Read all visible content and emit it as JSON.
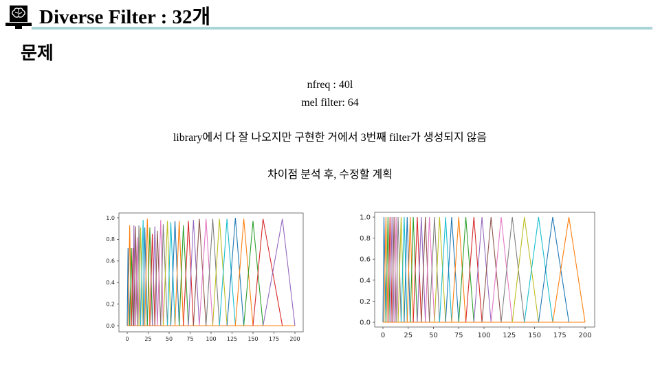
{
  "slide": {
    "title": "Diverse Filter : 32개",
    "heading": "문제",
    "lines": [
      "nfreq : 40l",
      "mel filter: 64",
      "library에서 다 잘 나오지만 구현한 거에서 3번째 filter가 생성되지 않음",
      "차이점 분석 후, 수정할 계획"
    ],
    "logo_icon": "brain-monitor-icon",
    "accent_color": "#a9d4d8"
  },
  "chart_data": [
    {
      "type": "line",
      "title": "",
      "xlabel": "",
      "ylabel": "",
      "xlim": [
        0,
        200
      ],
      "ylim": [
        0,
        1.0
      ],
      "x_ticks": [
        "0",
        "25",
        "50",
        "75",
        "100",
        "125",
        "150",
        "175",
        "200"
      ],
      "y_ticks": [
        "0.0",
        "0.2",
        "0.4",
        "0.6",
        "0.8",
        "1.0"
      ],
      "grid": false,
      "legend": "none",
      "peaks": [
        {
          "x": 1,
          "y": 0.72
        },
        {
          "x": 3,
          "y": 0.93
        },
        {
          "x": 5,
          "y": 0.72
        },
        {
          "x": 7,
          "y": 0.72
        },
        {
          "x": 8,
          "y": 0.93
        },
        {
          "x": 10,
          "y": 0.92
        },
        {
          "x": 12,
          "y": 0.82
        },
        {
          "x": 14,
          "y": 0.93
        },
        {
          "x": 16,
          "y": 0.91
        },
        {
          "x": 19,
          "y": 0.98
        },
        {
          "x": 21,
          "y": 0.91
        },
        {
          "x": 24,
          "y": 0.99
        },
        {
          "x": 27,
          "y": 0.91
        },
        {
          "x": 30,
          "y": 0.85
        },
        {
          "x": 33,
          "y": 0.92
        },
        {
          "x": 36,
          "y": 0.88
        },
        {
          "x": 40,
          "y": 0.98
        },
        {
          "x": 43,
          "y": 0.94
        },
        {
          "x": 48,
          "y": 0.97
        },
        {
          "x": 52,
          "y": 0.96
        },
        {
          "x": 57,
          "y": 0.97
        },
        {
          "x": 62,
          "y": 0.97
        },
        {
          "x": 67,
          "y": 0.93
        },
        {
          "x": 73,
          "y": 0.97
        },
        {
          "x": 79,
          "y": 0.98
        },
        {
          "x": 86,
          "y": 0.99
        },
        {
          "x": 94,
          "y": 0.99
        },
        {
          "x": 102,
          "y": 0.99
        },
        {
          "x": 110,
          "y": 0.99
        },
        {
          "x": 119,
          "y": 0.99
        },
        {
          "x": 129,
          "y": 1.0
        },
        {
          "x": 139,
          "y": 0.99
        },
        {
          "x": 150,
          "y": 0.97
        },
        {
          "x": 162,
          "y": 0.99
        },
        {
          "x": 185,
          "y": 0.99
        }
      ],
      "colors": [
        "#1f77b4",
        "#ff7f0e",
        "#2ca02c",
        "#d62728",
        "#9467bd",
        "#8c564b",
        "#e377c2",
        "#7f7f7f",
        "#bcbd22",
        "#17becf"
      ]
    },
    {
      "type": "line",
      "title": "",
      "xlabel": "",
      "ylabel": "",
      "xlim": [
        0,
        200
      ],
      "ylim": [
        0,
        1.0
      ],
      "x_ticks": [
        "0",
        "25",
        "50",
        "75",
        "100",
        "125",
        "150",
        "175",
        "200"
      ],
      "y_ticks": [
        "0.0",
        "0.2",
        "0.4",
        "0.6",
        "0.8",
        "1.0"
      ],
      "grid": false,
      "legend": "none",
      "peaks": [
        {
          "x": 1,
          "y": 1.0
        },
        {
          "x": 3,
          "y": 1.0
        },
        {
          "x": 5,
          "y": 1.0
        },
        {
          "x": 7,
          "y": 1.0
        },
        {
          "x": 9,
          "y": 1.0
        },
        {
          "x": 11,
          "y": 1.0
        },
        {
          "x": 13,
          "y": 1.0
        },
        {
          "x": 15,
          "y": 1.0
        },
        {
          "x": 18,
          "y": 1.0
        },
        {
          "x": 21,
          "y": 1.0
        },
        {
          "x": 24,
          "y": 1.0
        },
        {
          "x": 27,
          "y": 1.0
        },
        {
          "x": 30,
          "y": 1.0
        },
        {
          "x": 34,
          "y": 1.0
        },
        {
          "x": 38,
          "y": 1.0
        },
        {
          "x": 42,
          "y": 1.0
        },
        {
          "x": 46,
          "y": 1.0
        },
        {
          "x": 51,
          "y": 1.0
        },
        {
          "x": 56,
          "y": 1.0
        },
        {
          "x": 62,
          "y": 1.0
        },
        {
          "x": 68,
          "y": 1.0
        },
        {
          "x": 75,
          "y": 1.0
        },
        {
          "x": 82,
          "y": 1.0
        },
        {
          "x": 90,
          "y": 1.0
        },
        {
          "x": 98,
          "y": 1.0
        },
        {
          "x": 107,
          "y": 1.0
        },
        {
          "x": 117,
          "y": 1.0
        },
        {
          "x": 128,
          "y": 1.0
        },
        {
          "x": 140,
          "y": 1.0
        },
        {
          "x": 154,
          "y": 1.0
        },
        {
          "x": 168,
          "y": 1.0
        },
        {
          "x": 184,
          "y": 1.0
        }
      ],
      "colors": [
        "#1f77b4",
        "#ff7f0e",
        "#2ca02c",
        "#d62728",
        "#9467bd",
        "#8c564b",
        "#e377c2",
        "#7f7f7f",
        "#bcbd22",
        "#17becf"
      ]
    }
  ]
}
